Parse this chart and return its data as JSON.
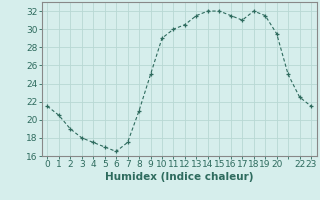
{
  "x": [
    0,
    1,
    2,
    3,
    4,
    5,
    6,
    7,
    8,
    9,
    10,
    11,
    12,
    13,
    14,
    15,
    16,
    17,
    18,
    19,
    20,
    21,
    22,
    23
  ],
  "y": [
    21.5,
    20.5,
    19.0,
    18.0,
    17.5,
    17.0,
    16.5,
    17.5,
    21.0,
    25.0,
    29.0,
    30.0,
    30.5,
    31.5,
    32.0,
    32.0,
    31.5,
    31.0,
    32.0,
    31.5,
    29.5,
    25.0,
    22.5,
    21.5
  ],
  "line_color": "#2e6b5e",
  "marker": "+",
  "bg_color": "#d6eeec",
  "grid_color": "#b8d8d4",
  "xlabel": "Humidex (Indice chaleur)",
  "ylim": [
    16,
    33
  ],
  "yticks": [
    16,
    18,
    20,
    22,
    24,
    26,
    28,
    30,
    32
  ],
  "xticks": [
    0,
    1,
    2,
    3,
    4,
    5,
    6,
    7,
    8,
    9,
    10,
    11,
    12,
    13,
    14,
    15,
    16,
    17,
    18,
    19,
    20,
    21,
    22,
    23
  ],
  "xtick_labels": [
    "0",
    "1",
    "2",
    "3",
    "4",
    "5",
    "6",
    "7",
    "8",
    "9",
    "10",
    "11",
    "12",
    "13",
    "14",
    "15",
    "16",
    "17",
    "18",
    "19",
    "20",
    "",
    "22",
    "23"
  ],
  "xlabel_fontsize": 7.5,
  "tick_fontsize": 6.5
}
